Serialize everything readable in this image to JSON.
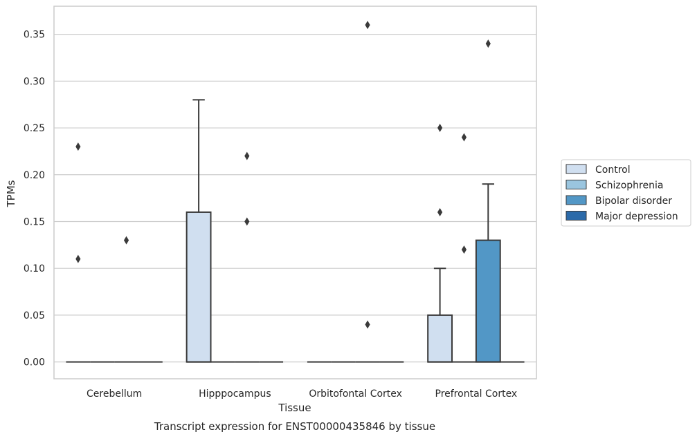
{
  "chart_data": {
    "type": "boxplot",
    "title": "",
    "caption": "Transcript expression for ENST00000435846 by tissue",
    "xlabel": "Tissue",
    "ylabel": "TPMs",
    "ylim": [
      -0.018,
      0.38
    ],
    "yticks": [
      0.0,
      0.05,
      0.1,
      0.15,
      0.2,
      0.25,
      0.3,
      0.35
    ],
    "ytick_labels": [
      "0.00",
      "0.05",
      "0.10",
      "0.15",
      "0.20",
      "0.25",
      "0.30",
      "0.35"
    ],
    "grid": "horizontal",
    "legend_placement": "right",
    "categories": [
      "Cerebellum",
      "Hipppocampus",
      "Orbitofontal Cortex",
      "Prefrontal Cortex"
    ],
    "series": [
      {
        "name": "Control",
        "color": "#d0dff0",
        "boxes": [
          {
            "q1": 0,
            "median": 0,
            "q3": 0,
            "whisker_low": 0,
            "whisker_high": 0,
            "outliers": [
              0.23,
              0.11
            ]
          },
          {
            "q1": 0,
            "median": 0,
            "q3": 0.16,
            "whisker_low": 0,
            "whisker_high": 0.28,
            "outliers": []
          },
          {
            "q1": 0,
            "median": 0,
            "q3": 0,
            "whisker_low": 0,
            "whisker_high": 0,
            "outliers": []
          },
          {
            "q1": 0,
            "median": 0,
            "q3": 0.05,
            "whisker_low": 0,
            "whisker_high": 0.1,
            "outliers": [
              0.25,
              0.16
            ]
          }
        ]
      },
      {
        "name": "Schizophrenia",
        "color": "#9ac5df",
        "boxes": [
          {
            "q1": 0,
            "median": 0,
            "q3": 0,
            "whisker_low": 0,
            "whisker_high": 0,
            "outliers": []
          },
          {
            "q1": 0,
            "median": 0,
            "q3": 0,
            "whisker_low": 0,
            "whisker_high": 0,
            "outliers": []
          },
          {
            "q1": 0,
            "median": 0,
            "q3": 0,
            "whisker_low": 0,
            "whisker_high": 0,
            "outliers": []
          },
          {
            "q1": 0,
            "median": 0,
            "q3": 0,
            "whisker_low": 0,
            "whisker_high": 0,
            "outliers": [
              0.24,
              0.12
            ]
          }
        ]
      },
      {
        "name": "Bipolar disorder",
        "color": "#5297c6",
        "boxes": [
          {
            "q1": 0,
            "median": 0,
            "q3": 0,
            "whisker_low": 0,
            "whisker_high": 0,
            "outliers": [
              0.13
            ]
          },
          {
            "q1": 0,
            "median": 0,
            "q3": 0,
            "whisker_low": 0,
            "whisker_high": 0,
            "outliers": [
              0.22,
              0.15
            ]
          },
          {
            "q1": 0,
            "median": 0,
            "q3": 0,
            "whisker_low": 0,
            "whisker_high": 0,
            "outliers": [
              0.36,
              0.04
            ]
          },
          {
            "q1": 0,
            "median": 0,
            "q3": 0.13,
            "whisker_low": 0,
            "whisker_high": 0.19,
            "outliers": [
              0.34
            ]
          }
        ]
      },
      {
        "name": "Major depression",
        "color": "#2b6aa9",
        "boxes": [
          {
            "q1": 0,
            "median": 0,
            "q3": 0,
            "whisker_low": 0,
            "whisker_high": 0,
            "outliers": []
          },
          {
            "q1": 0,
            "median": 0,
            "q3": 0,
            "whisker_low": 0,
            "whisker_high": 0,
            "outliers": []
          },
          {
            "q1": 0,
            "median": 0,
            "q3": 0,
            "whisker_low": 0,
            "whisker_high": 0,
            "outliers": []
          },
          {
            "q1": 0,
            "median": 0,
            "q3": 0,
            "whisker_low": 0,
            "whisker_high": 0,
            "outliers": []
          }
        ]
      }
    ]
  }
}
